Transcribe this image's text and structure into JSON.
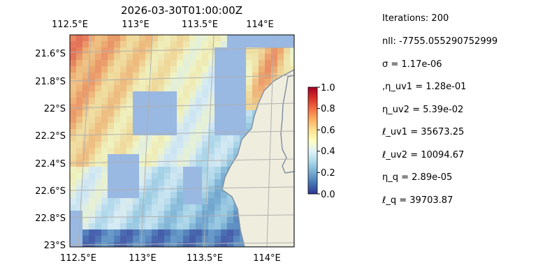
{
  "map": {
    "title": "2026-03-30T01:00:00Z",
    "lon_ticks": [
      "112.5°E",
      "113°E",
      "113.5°E",
      "114°E"
    ],
    "lat_ticks": [
      "21.6°S",
      "21.8°S",
      "22°S",
      "22.2°S",
      "22.4°S",
      "22.6°S",
      "22.8°S",
      "23°S"
    ],
    "lon_range": [
      112.5,
      114.2
    ],
    "lat_range": [
      -23.0,
      -21.45
    ],
    "grid": true,
    "colors": {
      "ocean": "#99b8e2",
      "land": "#efedde",
      "coast": "#7f8d9f",
      "grid": "#b0b0b0",
      "frame": "#000000"
    }
  },
  "colorbar": {
    "ticks": [
      "0.0",
      "0.2",
      "0.4",
      "0.6",
      "0.8",
      "1.0"
    ],
    "range": [
      0,
      1
    ],
    "colormap": "RdYlBu_r",
    "stops": [
      "#313695",
      "#4575b4",
      "#74add1",
      "#abd9e9",
      "#e0f3f8",
      "#ffffbf",
      "#fee090",
      "#fdae61",
      "#f46d43",
      "#d73027",
      "#a50026"
    ]
  },
  "stats": [
    "Iterations: 200",
    "nll: -7755.055290752999",
    "σ = 1.17e-06",
    ",η_uv1 = 1.28e-01",
    "η_uv2 = 5.39e-02",
    "ℓ_uv1 = 35673.25",
    "ℓ_uv2 = 10094.67",
    "η_q = 2.89e-05",
    "ℓ_q = 39703.87"
  ]
}
